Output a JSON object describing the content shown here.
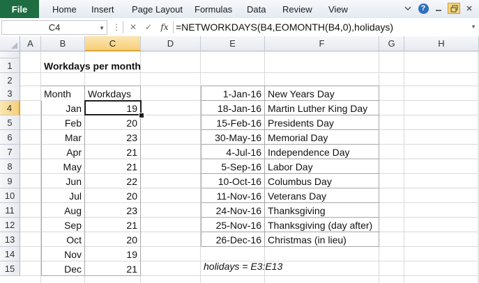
{
  "ribbon": {
    "file": "File",
    "tabs": [
      "Home",
      "Insert",
      "Page Layout",
      "Formulas",
      "Data",
      "Review",
      "View"
    ],
    "help_icon": "help-icon"
  },
  "formula_bar": {
    "name_box": "C4",
    "formula": "=NETWORKDAYS(B4,EOMONTH(B4,0),holidays)"
  },
  "columns": [
    "A",
    "B",
    "C",
    "D",
    "E",
    "F",
    "G",
    "H"
  ],
  "rows": [
    "1",
    "2",
    "3",
    "4",
    "5",
    "6",
    "7",
    "8",
    "9",
    "10",
    "11",
    "12",
    "13",
    "14",
    "15"
  ],
  "title": "Workdays per month",
  "workdays_table": {
    "headers": [
      "Month",
      "Workdays"
    ],
    "rows": [
      [
        "Jan",
        "19"
      ],
      [
        "Feb",
        "20"
      ],
      [
        "Mar",
        "23"
      ],
      [
        "Apr",
        "21"
      ],
      [
        "May",
        "21"
      ],
      [
        "Jun",
        "22"
      ],
      [
        "Jul",
        "20"
      ],
      [
        "Aug",
        "23"
      ],
      [
        "Sep",
        "21"
      ],
      [
        "Oct",
        "20"
      ],
      [
        "Nov",
        "19"
      ],
      [
        "Dec",
        "21"
      ]
    ]
  },
  "holidays_table": {
    "rows": [
      [
        "1-Jan-16",
        "New Years Day"
      ],
      [
        "18-Jan-16",
        "Martin Luther King Day"
      ],
      [
        "15-Feb-16",
        "Presidents Day"
      ],
      [
        "30-May-16",
        "Memorial Day"
      ],
      [
        "4-Jul-16",
        "Independence Day"
      ],
      [
        "5-Sep-16",
        "Labor Day"
      ],
      [
        "10-Oct-16",
        "Columbus Day"
      ],
      [
        "11-Nov-16",
        "Veterans Day"
      ],
      [
        "24-Nov-16",
        "Thanksgiving"
      ],
      [
        "25-Nov-16",
        "Thanksgiving (day after)"
      ],
      [
        "26-Dec-16",
        "Christmas (in lieu)"
      ]
    ]
  },
  "note": "holidays = E3:E13"
}
